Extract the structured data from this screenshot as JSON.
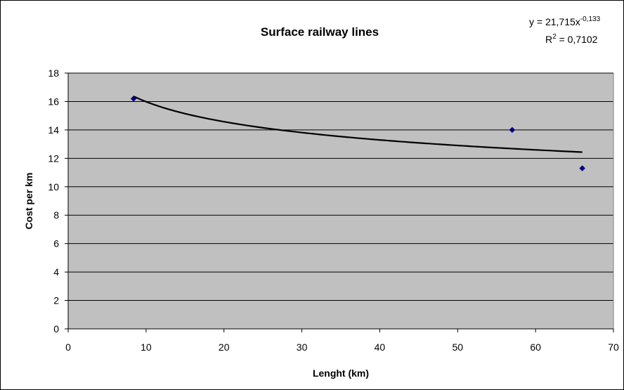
{
  "chart_data": {
    "type": "scatter",
    "title": "Surface railway lines",
    "xlabel": "Lenght (km)",
    "ylabel": "Cost per km",
    "xlim": [
      0,
      70
    ],
    "ylim": [
      0,
      18
    ],
    "x_ticks": [
      0,
      10,
      20,
      30,
      40,
      50,
      60,
      70
    ],
    "y_ticks": [
      0,
      2,
      4,
      6,
      8,
      10,
      12,
      14,
      16,
      18
    ],
    "grid": "horizontal",
    "plot_background": "#c0c0c0",
    "marker_color": "#000080",
    "series": [
      {
        "points": [
          {
            "x": 8.4,
            "y": 16.2
          },
          {
            "x": 57.0,
            "y": 14.0
          },
          {
            "x": 66.0,
            "y": 11.3
          }
        ]
      }
    ],
    "trendline": {
      "type": "power",
      "a": 21.715,
      "b": -0.133,
      "x_range": [
        8.4,
        66.0
      ],
      "color": "#000000"
    },
    "annotations": {
      "equation_prefix": "y = 21,715x",
      "equation_exponent": "-0,133",
      "r2_prefix": "R",
      "r2_exponent": "2",
      "r2_suffix": " = 0,7102"
    }
  }
}
